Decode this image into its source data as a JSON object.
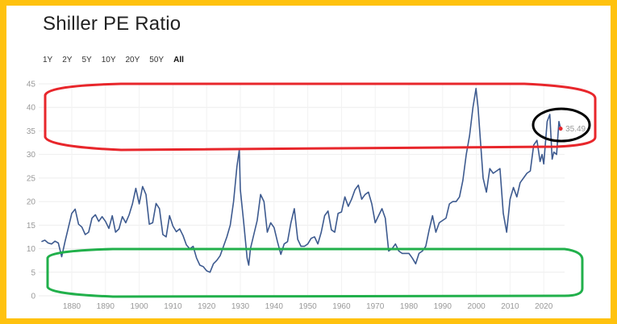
{
  "header": {
    "title": "Shiller PE Ratio"
  },
  "range_buttons": [
    {
      "label": "1Y",
      "active": false
    },
    {
      "label": "2Y",
      "active": false
    },
    {
      "label": "5Y",
      "active": false
    },
    {
      "label": "10Y",
      "active": false
    },
    {
      "label": "20Y",
      "active": false
    },
    {
      "label": "50Y",
      "active": false
    },
    {
      "label": "All",
      "active": true
    }
  ],
  "colors": {
    "frame": "#ffc20e",
    "line": "#3d5a8f",
    "last_point": "#e8262b",
    "highlight_high": "#e8262b",
    "highlight_low": "#21b04b",
    "highlight_latest": "#000000"
  },
  "chart_data": {
    "type": "line",
    "title": "Shiller PE Ratio",
    "xlabel": "",
    "ylabel": "",
    "xlim": [
      1871,
      2025
    ],
    "ylim": [
      0,
      45
    ],
    "y_ticks": [
      0,
      5,
      10,
      15,
      20,
      25,
      30,
      35,
      40,
      45
    ],
    "x_ticks": [
      1880,
      1890,
      1900,
      1910,
      1920,
      1930,
      1940,
      1950,
      1960,
      1970,
      1980,
      1990,
      2000,
      2010,
      2020
    ],
    "grid": true,
    "last_value_label": "35.49",
    "series": [
      {
        "name": "Shiller PE Ratio",
        "x": [
          1871,
          1872,
          1873,
          1874,
          1875,
          1876,
          1877,
          1878,
          1879,
          1880,
          1881,
          1882,
          1883,
          1884,
          1885,
          1886,
          1887,
          1888,
          1889,
          1890,
          1891,
          1892,
          1893,
          1894,
          1895,
          1896,
          1897,
          1898,
          1899,
          1900,
          1901,
          1902,
          1903,
          1904,
          1905,
          1906,
          1907,
          1908,
          1909,
          1910,
          1911,
          1912,
          1913,
          1914,
          1915,
          1916,
          1917,
          1918,
          1919,
          1920,
          1921,
          1922,
          1923,
          1924,
          1925,
          1926,
          1927,
          1928,
          1929,
          1929.7,
          1930,
          1931,
          1932,
          1932.5,
          1933,
          1934,
          1935,
          1936,
          1937,
          1938,
          1939,
          1940,
          1941,
          1942,
          1943,
          1944,
          1945,
          1946,
          1947,
          1948,
          1949,
          1950,
          1951,
          1952,
          1953,
          1954,
          1955,
          1956,
          1957,
          1958,
          1959,
          1960,
          1961,
          1962,
          1963,
          1964,
          1965,
          1966,
          1967,
          1968,
          1969,
          1970,
          1971,
          1972,
          1973,
          1974,
          1975,
          1976,
          1977,
          1978,
          1979,
          1980,
          1981,
          1982,
          1983,
          1984,
          1985,
          1986,
          1987,
          1988,
          1989,
          1990,
          1991,
          1992,
          1993,
          1994,
          1995,
          1996,
          1997,
          1998,
          1999,
          1999.9,
          2000.5,
          2001,
          2002,
          2003,
          2004,
          2005,
          2006,
          2007,
          2008,
          2009,
          2010,
          2011,
          2012,
          2013,
          2014,
          2015,
          2016,
          2017,
          2018,
          2018.9,
          2019.5,
          2020,
          2021,
          2021.8,
          2022.5,
          2023,
          2023.8,
          2024.5,
          2025
        ],
        "values": [
          11.5,
          11.8,
          11.2,
          11.0,
          11.6,
          11.2,
          8.3,
          11.5,
          14.5,
          17.5,
          18.4,
          15.2,
          14.6,
          13.0,
          13.5,
          16.5,
          17.2,
          15.8,
          16.8,
          15.8,
          14.3,
          17.0,
          13.5,
          14.2,
          16.8,
          15.5,
          17.2,
          19.5,
          22.8,
          19.5,
          23.2,
          21.5,
          15.2,
          15.5,
          19.6,
          18.5,
          13.0,
          12.5,
          17.0,
          14.8,
          13.6,
          14.2,
          12.8,
          10.8,
          10.0,
          10.5,
          8.0,
          6.5,
          6.2,
          5.3,
          5.0,
          6.8,
          7.5,
          8.5,
          10.5,
          12.5,
          15.0,
          20.0,
          27.5,
          31.0,
          22.5,
          15.5,
          8.0,
          6.5,
          10.0,
          13.0,
          16.0,
          21.5,
          20.0,
          13.5,
          15.5,
          14.5,
          11.5,
          8.8,
          11.0,
          11.5,
          15.5,
          18.5,
          12.0,
          10.5,
          10.5,
          11.0,
          12.2,
          12.5,
          11.0,
          13.5,
          17.0,
          18.0,
          14.0,
          13.5,
          17.5,
          17.8,
          21.0,
          19.0,
          20.5,
          22.5,
          23.5,
          20.5,
          21.5,
          22.0,
          19.5,
          15.5,
          17.0,
          18.5,
          16.5,
          9.5,
          10.0,
          11.0,
          9.5,
          9.0,
          9.0,
          9.0,
          8.0,
          6.8,
          9.0,
          9.5,
          10.5,
          14.0,
          17.0,
          13.5,
          15.5,
          16.0,
          16.5,
          19.5,
          20.0,
          20.0,
          21.0,
          24.5,
          30.0,
          34.0,
          40.0,
          44.0,
          40.0,
          35.0,
          25.0,
          22.0,
          27.0,
          26.0,
          26.5,
          27.0,
          17.5,
          13.5,
          20.5,
          23.0,
          21.0,
          24.0,
          25.0,
          26.0,
          26.5,
          32.0,
          33.0,
          28.5,
          30.0,
          28.0,
          37.0,
          38.5,
          29.0,
          30.5,
          30.0,
          37.0,
          35.49
        ]
      }
    ]
  }
}
